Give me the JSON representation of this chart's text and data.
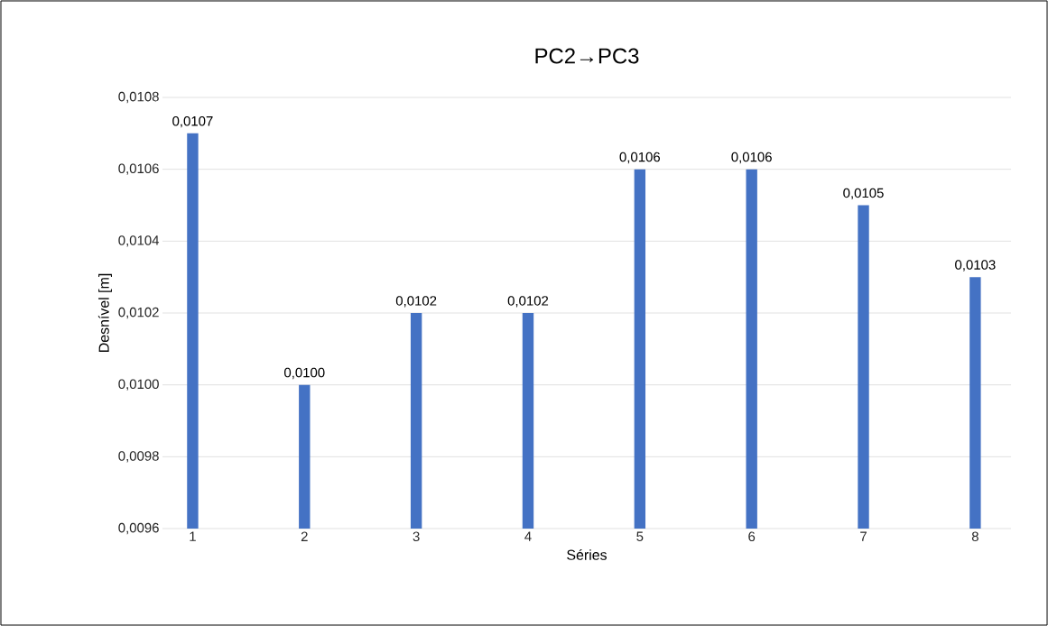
{
  "chart_data": {
    "type": "bar",
    "title": "PC2→PC3",
    "xlabel": "Séries",
    "ylabel": "Desnível [m]",
    "categories": [
      "1",
      "2",
      "3",
      "4",
      "5",
      "6",
      "7",
      "8"
    ],
    "values": [
      0.0107,
      0.01,
      0.0102,
      0.0102,
      0.0106,
      0.0106,
      0.0105,
      0.0103
    ],
    "value_labels": [
      "0,0107",
      "0,0100",
      "0,0102",
      "0,0102",
      "0,0106",
      "0,0106",
      "0,0105",
      "0,0103"
    ],
    "color": "#4472c4",
    "ylim": [
      0.0096,
      0.0108
    ],
    "yticks": [
      {
        "value": 0.0096,
        "label": "0,0096"
      },
      {
        "value": 0.0098,
        "label": "0,0098"
      },
      {
        "value": 0.01,
        "label": "0,0100"
      },
      {
        "value": 0.0102,
        "label": "0,0102"
      },
      {
        "value": 0.0104,
        "label": "0,0104"
      },
      {
        "value": 0.0106,
        "label": "0,0106"
      },
      {
        "value": 0.0108,
        "label": "0,0108"
      }
    ],
    "grid": true
  }
}
